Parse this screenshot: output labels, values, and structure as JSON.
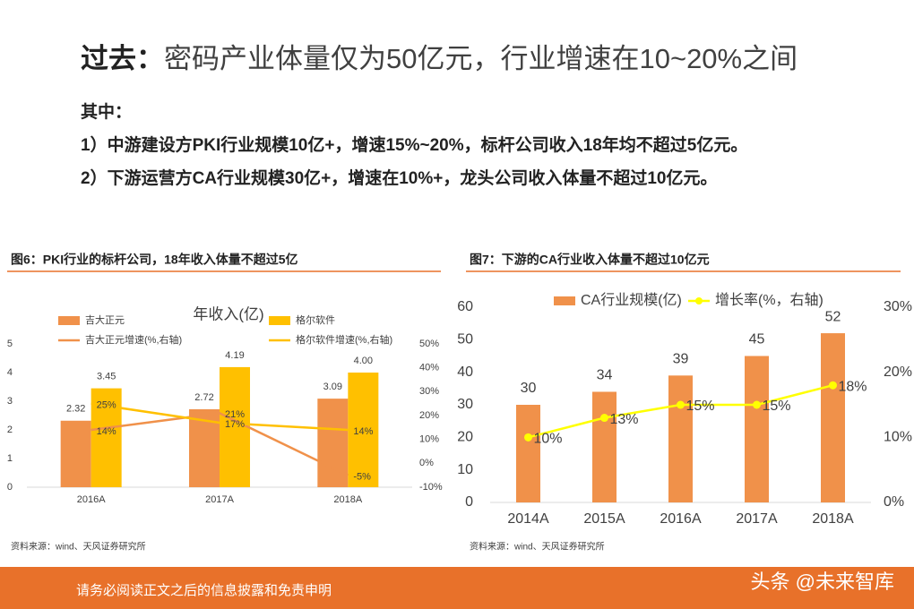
{
  "heading_prefix": "过去：",
  "heading": "密码产业体量仅为50亿元，行业增速在10~20%之间",
  "intro": "其中：",
  "points": [
    "1）中游建设方PKI行业规模10亿+，增速15%~20%，标杆公司收入18年均不超过5亿元。",
    "2）下游运营方CA行业规模30亿+，增速在10%+，龙头公司收入体量不超过10亿元。"
  ],
  "footer": "请务必阅读正文之后的信息披露和免责申明",
  "watermark": "头条 @未来智库",
  "chart_data": [
    {
      "type": "bar_line",
      "title": "图6：PKI行业的标杆公司，18年收入体量不超过5亿",
      "y_title": "年收入(亿)",
      "source": "资料来源：wind、天风证券研究所",
      "categories": [
        "2016A",
        "2017A",
        "2018A"
      ],
      "series": [
        {
          "name": "吉大正元",
          "kind": "bar",
          "color": "#f0914a",
          "values": [
            2.32,
            2.72,
            3.09
          ]
        },
        {
          "name": "格尔软件",
          "kind": "bar",
          "color": "#ffc000",
          "values": [
            3.45,
            4.19,
            4.0
          ],
          "value_labels": [
            "3.45",
            "4.19",
            "4.00"
          ]
        },
        {
          "name": "吉大正元增速(%,右轴)",
          "kind": "line",
          "axis": "y2",
          "color": "#f0914a",
          "values": [
            14,
            21,
            -5
          ],
          "value_labels": [
            "14%",
            "21%",
            "-5%"
          ]
        },
        {
          "name": "格尔软件增速(%,右轴)",
          "kind": "line",
          "axis": "y2",
          "color": "#ffc000",
          "values": [
            25,
            17,
            14
          ],
          "value_labels": [
            "25%",
            "17%",
            "14%"
          ]
        }
      ],
      "ylim": [
        0,
        5
      ],
      "yticks": [
        0,
        1,
        2,
        3,
        4,
        5
      ],
      "y2lim": [
        -10,
        50
      ],
      "y2ticks": [
        {
          "value": -10,
          "label": "-10%"
        },
        {
          "value": 0,
          "label": "0%"
        },
        {
          "value": 10,
          "label": "10%"
        },
        {
          "value": 20,
          "label": "20%"
        },
        {
          "value": 30,
          "label": "30%"
        },
        {
          "value": 40,
          "label": "40%"
        },
        {
          "value": 50,
          "label": "50%"
        }
      ],
      "markers": false
    },
    {
      "type": "bar_line",
      "title": "图7：下游的CA行业收入体量不超过10亿元",
      "source": "资料来源：wind、天风证券研究所",
      "categories": [
        "2014A",
        "2015A",
        "2016A",
        "2017A",
        "2018A"
      ],
      "series": [
        {
          "name": "CA行业规模(亿)",
          "kind": "bar",
          "color": "#f0914a",
          "values": [
            30,
            34,
            39,
            45,
            52
          ]
        },
        {
          "name": "增长率(%，右轴)",
          "kind": "line",
          "axis": "y2",
          "color": "#ffff00",
          "values": [
            10,
            13,
            15,
            15,
            18
          ],
          "value_labels": [
            "10%",
            "13%",
            "15%",
            "15%",
            "18%"
          ]
        }
      ],
      "ylim": [
        0,
        60
      ],
      "yticks": [
        0,
        10,
        20,
        30,
        40,
        50,
        60
      ],
      "y2lim": [
        0,
        30
      ],
      "y2ticks": [
        {
          "value": 0,
          "label": "0%"
        },
        {
          "value": 10,
          "label": "10%"
        },
        {
          "value": 20,
          "label": "20%"
        },
        {
          "value": 30,
          "label": "30%"
        }
      ],
      "markers": true
    }
  ]
}
